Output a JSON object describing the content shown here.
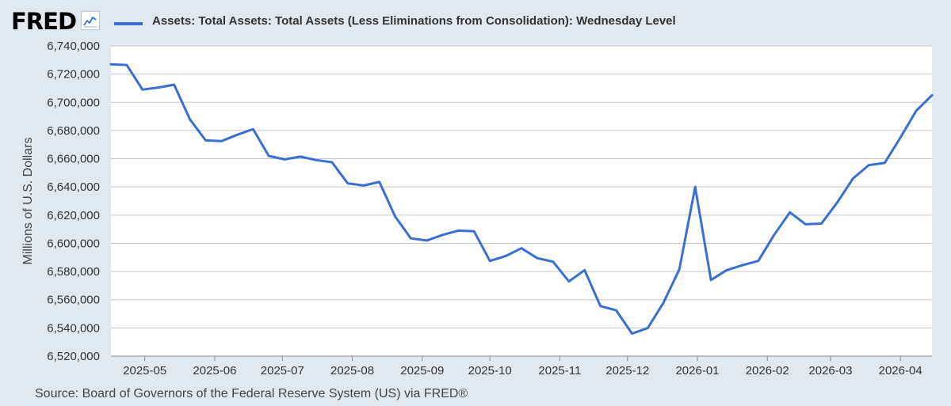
{
  "header": {
    "logo_text": "FRED",
    "legend_label": "Assets: Total Assets: Total Assets (Less Eliminations from Consolidation): Wednesday Level"
  },
  "footer": {
    "source": "Source: Board of Governors of the Federal Reserve System (US) via FRED®"
  },
  "colors": {
    "line": "#3a6fd1",
    "background": "#e1e9f0",
    "plot_background": "#ffffff",
    "grid": "#c6c6c6",
    "tick_text": "#333333"
  },
  "chart_data": {
    "type": "line",
    "xlabel": "",
    "ylabel": "Millions of U.S. Dollars",
    "ylim": [
      6520000,
      6740000
    ],
    "yticks": [
      6520000,
      6540000,
      6560000,
      6580000,
      6600000,
      6620000,
      6640000,
      6660000,
      6680000,
      6700000,
      6720000,
      6740000
    ],
    "ytick_labels": [
      "6,520,000",
      "6,540,000",
      "6,560,000",
      "6,580,000",
      "6,600,000",
      "6,620,000",
      "6,640,000",
      "6,660,000",
      "6,680,000",
      "6,700,000",
      "6,720,000",
      "6,740,000"
    ],
    "xlim": [
      "2025-04-16",
      "2026-04-15"
    ],
    "xticks": [
      "2025-05-01",
      "2025-06-01",
      "2025-07-01",
      "2025-08-01",
      "2025-09-01",
      "2025-10-01",
      "2025-11-01",
      "2025-12-01",
      "2026-01-01",
      "2026-02-01",
      "2026-03-01",
      "2026-04-01"
    ],
    "xtick_labels": [
      "2025-05",
      "2025-06",
      "2025-07",
      "2025-08",
      "2025-09",
      "2025-10",
      "2025-11",
      "2025-12",
      "2026-01",
      "2026-02",
      "2026-03",
      "2026-04"
    ],
    "grid": true,
    "series": [
      {
        "name": "Assets: Total Assets: Total Assets (Less Eliminations from Consolidation): Wednesday Level",
        "x": [
          "2025-04-16",
          "2025-04-23",
          "2025-04-30",
          "2025-05-07",
          "2025-05-14",
          "2025-05-21",
          "2025-05-28",
          "2025-06-04",
          "2025-06-11",
          "2025-06-18",
          "2025-06-25",
          "2025-07-02",
          "2025-07-09",
          "2025-07-16",
          "2025-07-23",
          "2025-07-30",
          "2025-08-06",
          "2025-08-13",
          "2025-08-20",
          "2025-08-27",
          "2025-09-03",
          "2025-09-10",
          "2025-09-17",
          "2025-09-24",
          "2025-10-01",
          "2025-10-08",
          "2025-10-15",
          "2025-10-22",
          "2025-10-29",
          "2025-11-05",
          "2025-11-12",
          "2025-11-19",
          "2025-11-26",
          "2025-12-03",
          "2025-12-10",
          "2025-12-17",
          "2025-12-24",
          "2025-12-31",
          "2026-01-07",
          "2026-01-14",
          "2026-01-21",
          "2026-01-28",
          "2026-02-04",
          "2026-02-11",
          "2026-02-18",
          "2026-02-25",
          "2026-03-04",
          "2026-03-11",
          "2026-03-18",
          "2026-03-25",
          "2026-04-01",
          "2026-04-08",
          "2026-04-15"
        ],
        "values": [
          6727000,
          6726500,
          6709000,
          6710500,
          6712500,
          6688000,
          6673000,
          6672500,
          6677000,
          6681000,
          6662000,
          6659500,
          6661500,
          6659000,
          6657500,
          6642500,
          6641000,
          6643500,
          6619000,
          6603500,
          6602000,
          6606000,
          6609000,
          6608500,
          6587500,
          6591000,
          6596500,
          6589500,
          6587000,
          6573000,
          6581000,
          6555500,
          6552500,
          6536000,
          6540000,
          6558000,
          6581500,
          6640000,
          6574000,
          6581000,
          6584500,
          6587500,
          6606000,
          6622000,
          6613500,
          6614000,
          6629000,
          6646000,
          6655500,
          6657000,
          6675000,
          6694000,
          6705000
        ]
      }
    ]
  }
}
